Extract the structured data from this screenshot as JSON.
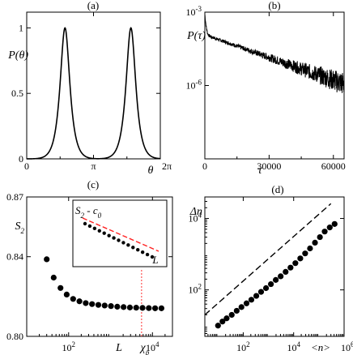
{
  "chart_data": [
    {
      "id": "a",
      "panel_label": "(a)",
      "type": "line",
      "ylabel": "P(θ)",
      "xlabel": "θ",
      "xlim": [
        0,
        6.2832
      ],
      "ylim": [
        0,
        1.12
      ],
      "x_ticks": [
        {
          "v": 0,
          "t": "0"
        },
        {
          "v": 3.1416,
          "t": "π"
        },
        {
          "v": 6.2832,
          "t": "2π"
        }
      ],
      "y_ticks": [
        {
          "v": 0,
          "t": "0"
        },
        {
          "v": 0.5,
          "t": "0.5"
        },
        {
          "v": 1,
          "t": "1"
        }
      ],
      "peaks": [
        {
          "center": 1.8,
          "width": 0.3
        },
        {
          "center": 4.9,
          "width": 0.3
        }
      ]
    },
    {
      "id": "b",
      "panel_label": "(b)",
      "type": "line",
      "ylabel": "P(τ)",
      "xlabel": "τ",
      "y_scale": "log",
      "xlim": [
        0,
        65000
      ],
      "ylim": [
        1e-09,
        0.001
      ],
      "x_ticks": [
        {
          "v": 0,
          "t": "0"
        },
        {
          "v": 30000,
          "t": "30000"
        },
        {
          "v": 60000,
          "t": "60000"
        }
      ],
      "y_ticks": [
        {
          "v": 0.001,
          "t": "10",
          "e": "-3"
        },
        {
          "v": 1e-06,
          "t": "10",
          "e": "-6"
        }
      ],
      "curve": {
        "amplitude": 0.00012,
        "decay_scale": 14000,
        "early_spike": 0.0007
      }
    },
    {
      "id": "c",
      "panel_label": "(c)",
      "type": "scatter",
      "ylabel": "S",
      "ylabel_sub": "2",
      "xlabel": "L",
      "x_scale": "log",
      "xlim": [
        10,
        30000
      ],
      "ylim": [
        0.8,
        0.87
      ],
      "x_ticks": [
        {
          "v": 100,
          "t": "10",
          "e": "2"
        },
        {
          "v": 10000,
          "t": "10",
          "e": "4"
        }
      ],
      "y_ticks": [
        {
          "v": 0.8,
          "t": "0.80"
        },
        {
          "v": 0.84,
          "t": "0.84"
        },
        {
          "v": 0.87,
          "t": "0.87"
        }
      ],
      "marker_label": "χ",
      "marker_sub": "p",
      "marker_x": 5500,
      "x": [
        30,
        44,
        64,
        90,
        128,
        181,
        256,
        362,
        512,
        724,
        1024,
        1448,
        2048,
        2896,
        4096,
        5792,
        8192,
        11585,
        16384
      ],
      "y": [
        0.8387,
        0.8295,
        0.8243,
        0.821,
        0.8188,
        0.8176,
        0.8167,
        0.8162,
        0.8158,
        0.8155,
        0.8152,
        0.8149,
        0.8147,
        0.8145,
        0.8144,
        0.8143,
        0.8142,
        0.8141,
        0.8141
      ],
      "inset": {
        "ylabel": "S",
        "ylabel_sub": "2",
        "ylabel_tail": " - c",
        "ylabel_tail_sub": "0",
        "xlabel": "L",
        "points": 15
      }
    },
    {
      "id": "d",
      "panel_label": "(d)",
      "type": "scatter",
      "ylabel": "Δn",
      "xlabel": "<n>",
      "x_scale": "log",
      "y_scale": "log",
      "xlim": [
        3,
        1000000
      ],
      "ylim": [
        5,
        40000
      ],
      "x_ticks": [
        {
          "v": 100,
          "t": "10",
          "e": "2"
        },
        {
          "v": 10000,
          "t": "10",
          "e": "4"
        },
        {
          "v": 1000000,
          "t": "10",
          "e": "6"
        }
      ],
      "y_ticks": [
        {
          "v": 100,
          "t": "10",
          "e": "2"
        },
        {
          "v": 10000,
          "t": "10",
          "e": "4"
        }
      ],
      "x": [
        10,
        15,
        22,
        35,
        55,
        85,
        135,
        210,
        330,
        510,
        800,
        1250,
        1950,
        3050,
        4800,
        7500,
        11700,
        18300,
        28500,
        44500,
        70000,
        110000,
        170000,
        270000,
        420000
      ],
      "y": [
        10,
        13,
        16,
        20,
        26,
        33,
        42,
        53,
        68,
        88,
        112,
        145,
        190,
        240,
        320,
        420,
        560,
        760,
        1050,
        1450,
        2100,
        3000,
        4300,
        5600,
        7000
      ],
      "guide": {
        "x": [
          3,
          300000
        ],
        "y": [
          20,
          26000
        ]
      }
    }
  ]
}
